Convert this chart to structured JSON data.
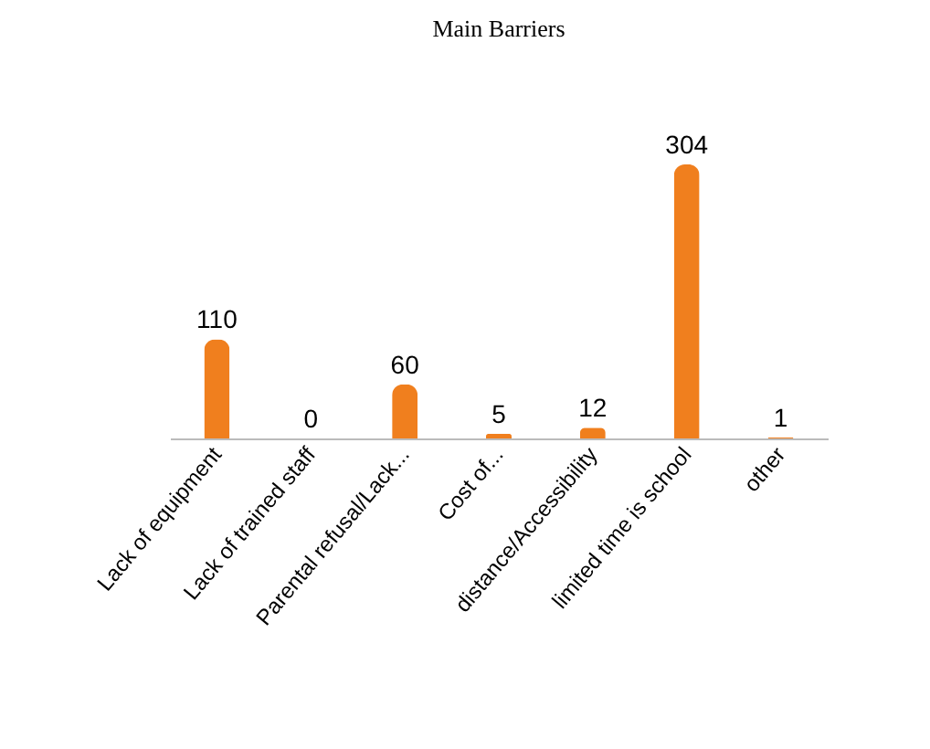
{
  "chart_data": {
    "type": "bar",
    "title": "Main Barriers",
    "categories": [
      "Lack of equipment",
      "Lack of trained staff",
      "Parental refusal/Lack...",
      "Cost of...",
      "distance/Accessibility",
      "limited time is school",
      "other"
    ],
    "values": [
      110,
      0,
      60,
      5,
      12,
      304,
      1
    ],
    "color": "#f07f1e",
    "data_labels": true
  }
}
